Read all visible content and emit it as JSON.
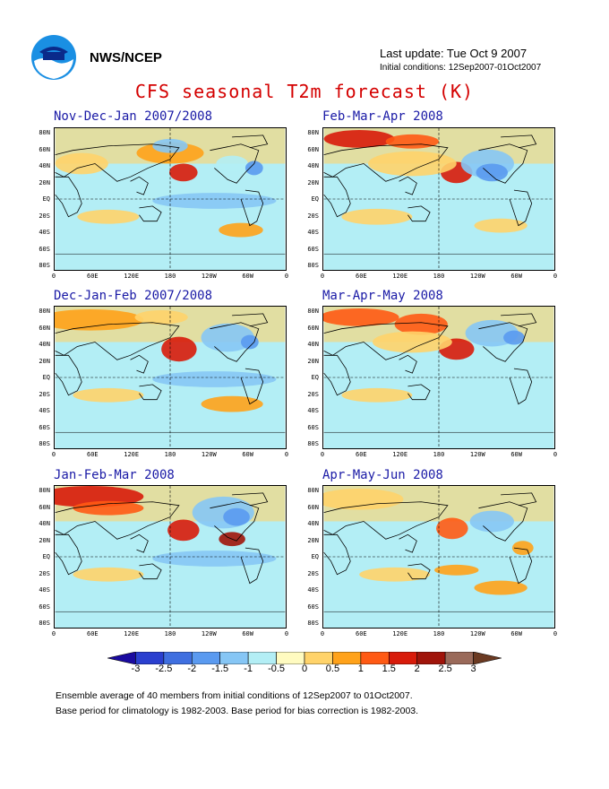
{
  "header": {
    "org": "NWS/NCEP",
    "last_update": "Last update: Tue Oct  9 2007",
    "initial_conditions": "Initial conditions: 12Sep2007-01Oct2007",
    "title": "CFS seasonal T2m forecast (K)"
  },
  "panels": [
    {
      "title": "Nov-Dec-Jan 2007/2008"
    },
    {
      "title": "Feb-Mar-Apr 2008"
    },
    {
      "title": "Dec-Jan-Feb 2007/2008"
    },
    {
      "title": "Mar-Apr-May 2008"
    },
    {
      "title": "Jan-Feb-Mar 2008"
    },
    {
      "title": "Apr-May-Jun 2008"
    }
  ],
  "lat_labels": [
    "80N",
    "60N",
    "40N",
    "20N",
    "EQ",
    "20S",
    "40S",
    "60S",
    "80S"
  ],
  "lon_labels": [
    "0",
    "60E",
    "120E",
    "180",
    "120W",
    "60W",
    "0"
  ],
  "colorbar": {
    "labels": [
      "-3",
      "-2.5",
      "-2",
      "-1.5",
      "-1",
      "-0.5",
      "0",
      "0.5",
      "1",
      "1.5",
      "2",
      "2.5",
      "3"
    ],
    "colors": [
      "#1a0aa0",
      "#2a3fcf",
      "#3f6fe0",
      "#5a9af0",
      "#86c6f5",
      "#b3eef5",
      "#fffbc0",
      "#ffd36a",
      "#ffa21a",
      "#ff5a14",
      "#d81b0a",
      "#a0140a",
      "#9a6a5a",
      "#6b3a22"
    ]
  },
  "footer": {
    "line1": "Ensemble average of 40 members from initial conditions of 12Sep2007 to 01Oct2007.",
    "line2": "Base period for climatology is 1982-2003.  Base period for bias correction is 1982-2003."
  }
}
